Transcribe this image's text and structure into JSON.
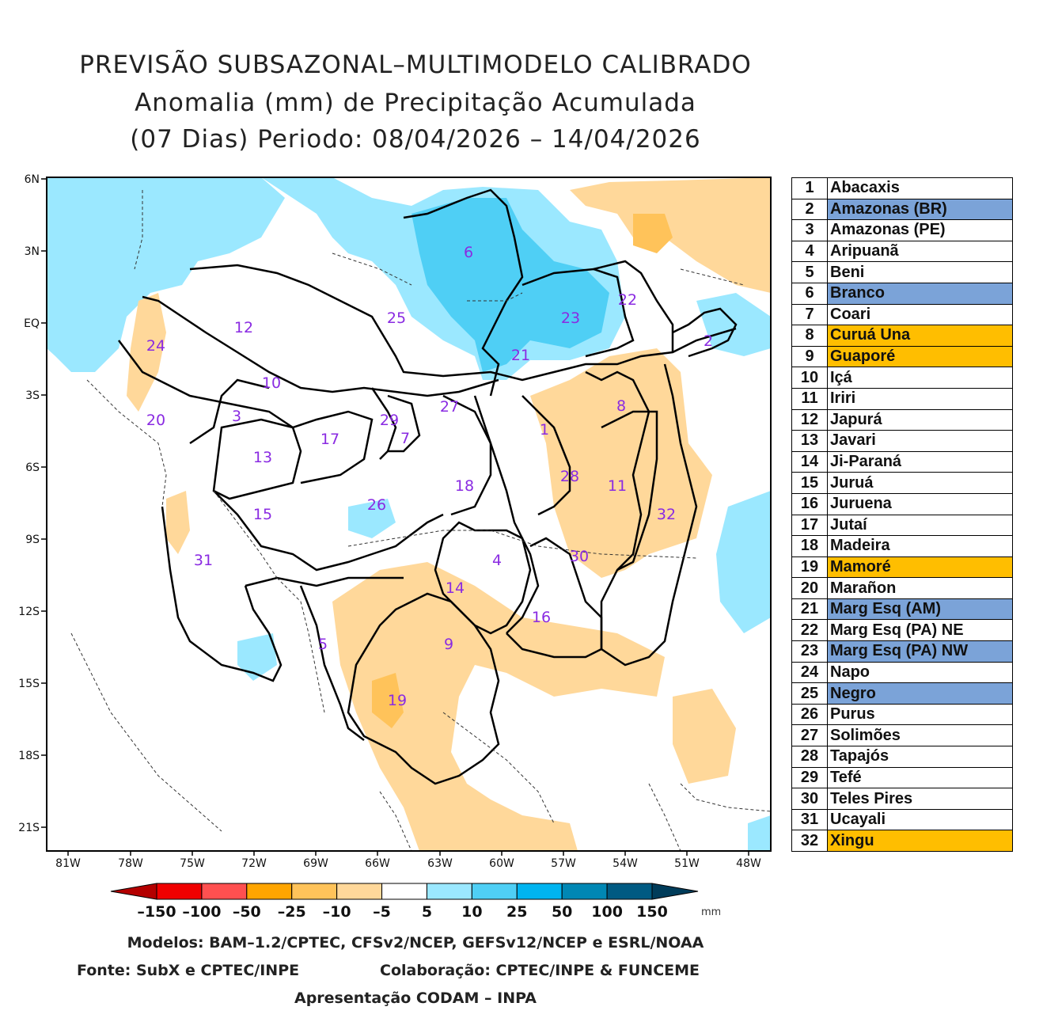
{
  "title": {
    "line1": "PREVISÃO SUBSAZONAL–MULTIMODELO CALIBRADO",
    "line2": "Anomalia (mm) de Precipitação Acumulada",
    "line3": "(07 Dias) Periodo: 08/04/2026 – 14/04/2026"
  },
  "axes": {
    "y_labels": [
      "6N",
      "3N",
      "EQ",
      "3S",
      "6S",
      "9S",
      "12S",
      "15S",
      "18S",
      "21S"
    ],
    "x_labels": [
      "81W",
      "78W",
      "75W",
      "72W",
      "69W",
      "66W",
      "63W",
      "60W",
      "57W",
      "54W",
      "51W",
      "48W"
    ]
  },
  "basin_labels": [
    {
      "id": "1"
    },
    {
      "id": "2"
    },
    {
      "id": "3"
    },
    {
      "id": "4"
    },
    {
      "id": "5"
    },
    {
      "id": "6"
    },
    {
      "id": "7"
    },
    {
      "id": "8"
    },
    {
      "id": "9"
    },
    {
      "id": "10"
    },
    {
      "id": "11"
    },
    {
      "id": "12"
    },
    {
      "id": "13"
    },
    {
      "id": "14"
    },
    {
      "id": "15"
    },
    {
      "id": "16"
    },
    {
      "id": "17"
    },
    {
      "id": "18"
    },
    {
      "id": "19"
    },
    {
      "id": "20"
    },
    {
      "id": "21"
    },
    {
      "id": "22"
    },
    {
      "id": "23"
    },
    {
      "id": "24"
    },
    {
      "id": "25"
    },
    {
      "id": "26"
    },
    {
      "id": "27"
    },
    {
      "id": "28"
    },
    {
      "id": "29"
    },
    {
      "id": "30"
    },
    {
      "id": "31"
    },
    {
      "id": "32"
    }
  ],
  "basins": [
    {
      "num": "1",
      "name": "Abacaxis",
      "highlight": "none"
    },
    {
      "num": "2",
      "name": "Amazonas (BR)",
      "highlight": "wet"
    },
    {
      "num": "3",
      "name": "Amazonas (PE)",
      "highlight": "none"
    },
    {
      "num": "4",
      "name": "Aripuanã",
      "highlight": "none"
    },
    {
      "num": "5",
      "name": "Beni",
      "highlight": "none"
    },
    {
      "num": "6",
      "name": "Branco",
      "highlight": "wet"
    },
    {
      "num": "7",
      "name": "Coari",
      "highlight": "none"
    },
    {
      "num": "8",
      "name": "Curuá Una",
      "highlight": "dry"
    },
    {
      "num": "9",
      "name": "Guaporé",
      "highlight": "dry"
    },
    {
      "num": "10",
      "name": "Içá",
      "highlight": "none"
    },
    {
      "num": "11",
      "name": "Iriri",
      "highlight": "none"
    },
    {
      "num": "12",
      "name": "Japurá",
      "highlight": "none"
    },
    {
      "num": "13",
      "name": "Javari",
      "highlight": "none"
    },
    {
      "num": "14",
      "name": "Ji-Paraná",
      "highlight": "none"
    },
    {
      "num": "15",
      "name": "Juruá",
      "highlight": "none"
    },
    {
      "num": "16",
      "name": "Juruena",
      "highlight": "none"
    },
    {
      "num": "17",
      "name": "Jutaí",
      "highlight": "none"
    },
    {
      "num": "18",
      "name": "Madeira",
      "highlight": "none"
    },
    {
      "num": "19",
      "name": "Mamoré",
      "highlight": "dry"
    },
    {
      "num": "20",
      "name": "Marañon",
      "highlight": "none"
    },
    {
      "num": "21",
      "name": "Marg Esq (AM)",
      "highlight": "wet"
    },
    {
      "num": "22",
      "name": "Marg Esq (PA) NE",
      "highlight": "none"
    },
    {
      "num": "23",
      "name": "Marg Esq (PA) NW",
      "highlight": "wet"
    },
    {
      "num": "24",
      "name": "Napo",
      "highlight": "none"
    },
    {
      "num": "25",
      "name": "Negro",
      "highlight": "wet"
    },
    {
      "num": "26",
      "name": "Purus",
      "highlight": "none"
    },
    {
      "num": "27",
      "name": "Solimões",
      "highlight": "none"
    },
    {
      "num": "28",
      "name": "Tapajós",
      "highlight": "none"
    },
    {
      "num": "29",
      "name": "Tefé",
      "highlight": "none"
    },
    {
      "num": "30",
      "name": "Teles Pires",
      "highlight": "none"
    },
    {
      "num": "31",
      "name": "Ucayali",
      "highlight": "none"
    },
    {
      "num": "32",
      "name": "Xingu",
      "highlight": "dry"
    }
  ],
  "highlight_colors": {
    "wet": "#7BA3D8",
    "dry": "#FFBE00",
    "none": "#FFFFFF"
  },
  "colorbar": {
    "ticks": [
      "–150",
      "–100",
      "–50",
      "–25",
      "–10",
      "–5",
      "5",
      "10",
      "25",
      "50",
      "100",
      "150"
    ],
    "unit": "mm",
    "colors": [
      "#B40000",
      "#F00000",
      "#FF5050",
      "#FFA500",
      "#FFC35A",
      "#FFD89A",
      "#FFFFFF",
      "#9BE8FF",
      "#4FCFF5",
      "#00B4F0",
      "#0087B4",
      "#005A82",
      "#003C5A"
    ]
  },
  "footer": {
    "models": "Modelos: BAM–1.2/CPTEC, CFSv2/NCEP, GEFSv12/NCEP e ESRL/NOAA",
    "source": "Fonte: SubX e CPTEC/INPE",
    "collab": "Colaboração: CPTEC/INPE & FUNCEME",
    "presentation": "Apresentação CODAM – INPA"
  }
}
